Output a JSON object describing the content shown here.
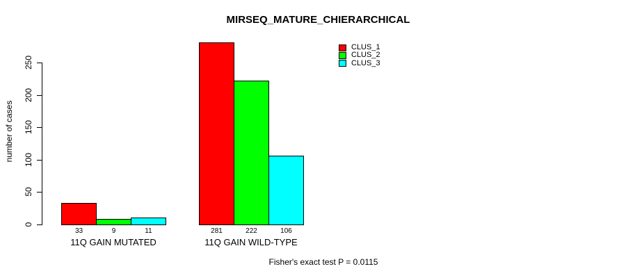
{
  "chart_data": {
    "type": "bar",
    "title": "MIRSEQ_MATURE_CHIERARCHICAL",
    "ylabel": "number of cases",
    "xlabel": "",
    "categories": [
      "11Q GAIN MUTATED",
      "11Q GAIN WILD-TYPE"
    ],
    "series": [
      {
        "name": "CLUS_1",
        "color": "#FF0000",
        "values": [
          33,
          281
        ]
      },
      {
        "name": "CLUS_2",
        "color": "#00FF00",
        "values": [
          9,
          222
        ]
      },
      {
        "name": "CLUS_3",
        "color": "#00FFFF",
        "values": [
          11,
          106
        ]
      }
    ],
    "y_ticks": [
      0,
      50,
      100,
      150,
      200,
      250
    ],
    "ylim": [
      0,
      281
    ],
    "grid": false,
    "legend_position": "top-right",
    "bar_value_labels": true,
    "annotation": "Fisher's exact test P = 0.0115"
  }
}
